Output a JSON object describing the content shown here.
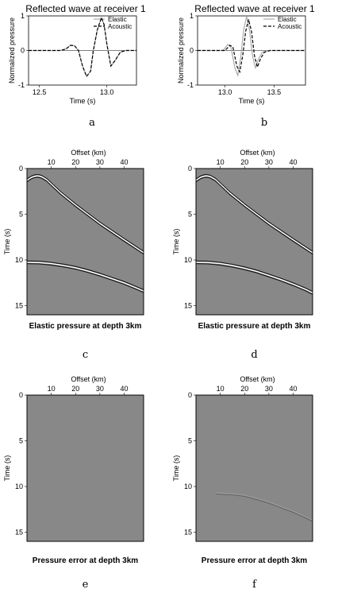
{
  "panels": [
    {
      "letter": "a"
    },
    {
      "letter": "b"
    },
    {
      "letter": "c"
    },
    {
      "letter": "d"
    },
    {
      "letter": "e"
    },
    {
      "letter": "f"
    }
  ],
  "chart_data": [
    {
      "panel": "a",
      "type": "line",
      "title": "Reflected wave at receiver 1",
      "xlabel": "Time (s)",
      "ylabel": "Normalized pressure",
      "xlim": [
        12.42,
        13.22
      ],
      "ylim": [
        -1,
        1
      ],
      "xticks": [
        "12.5",
        "13.0"
      ],
      "xtick_values": [
        12.5,
        13.0
      ],
      "yticks": [
        "-1",
        "0",
        "1"
      ],
      "ytick_values": [
        -1,
        0,
        1
      ],
      "legend_position": "top-right",
      "series": [
        {
          "name": "Elastic",
          "color": "#aaaaaa",
          "dash": "solid",
          "x": [
            12.42,
            12.66,
            12.7,
            12.73,
            12.76,
            12.79,
            12.82,
            12.85,
            12.88,
            12.9,
            12.93,
            12.96,
            12.98,
            13.0,
            13.03,
            13.06,
            13.1,
            13.14,
            13.22
          ],
          "y": [
            0,
            0,
            0.05,
            0.15,
            0.14,
            0,
            -0.45,
            -0.75,
            -0.6,
            0,
            0.6,
            0.95,
            0.75,
            0.2,
            -0.45,
            -0.3,
            -0.05,
            0,
            0
          ]
        },
        {
          "name": "Acoustic",
          "color": "#000000",
          "dash": "dashed",
          "x": [
            12.42,
            12.66,
            12.7,
            12.73,
            12.76,
            12.79,
            12.82,
            12.85,
            12.88,
            12.9,
            12.93,
            12.96,
            12.98,
            13.0,
            13.03,
            13.06,
            13.1,
            13.14,
            13.22
          ],
          "y": [
            0,
            0,
            0.05,
            0.15,
            0.14,
            0,
            -0.45,
            -0.75,
            -0.6,
            0,
            0.6,
            0.95,
            0.75,
            0.2,
            -0.45,
            -0.3,
            -0.05,
            0,
            0
          ]
        }
      ]
    },
    {
      "panel": "b",
      "type": "line",
      "title": "Reflected wave at receiver 1",
      "xlabel": "Time (s)",
      "ylabel": "Normalized pressure",
      "xlim": [
        12.72,
        13.82
      ],
      "ylim": [
        -1,
        1
      ],
      "xticks": [
        "13.0",
        "13.5"
      ],
      "xtick_values": [
        13.0,
        13.5
      ],
      "yticks": [
        "-1",
        "0",
        "1"
      ],
      "ytick_values": [
        -1,
        0,
        1
      ],
      "legend_position": "top-right",
      "series": [
        {
          "name": "Elastic",
          "color": "#aaaaaa",
          "dash": "solid",
          "x": [
            12.72,
            12.98,
            13.03,
            13.06,
            13.1,
            13.13,
            13.16,
            13.19,
            13.22,
            13.25,
            13.28,
            13.31,
            13.34,
            13.38,
            13.44,
            13.82
          ],
          "y": [
            0,
            0,
            0.18,
            0.1,
            -0.5,
            -0.72,
            -0.2,
            0.6,
            0.98,
            0.6,
            -0.15,
            -0.5,
            -0.25,
            -0.05,
            0,
            0
          ]
        },
        {
          "name": "Acoustic",
          "color": "#000000",
          "dash": "dashed",
          "x": [
            12.72,
            13.0,
            13.05,
            13.08,
            13.12,
            13.15,
            13.18,
            13.21,
            13.24,
            13.27,
            13.3,
            13.33,
            13.36,
            13.4,
            13.46,
            13.82
          ],
          "y": [
            0,
            0,
            0.15,
            0.1,
            -0.45,
            -0.62,
            -0.15,
            0.55,
            0.9,
            0.55,
            -0.15,
            -0.48,
            -0.25,
            -0.05,
            0,
            0
          ]
        }
      ]
    },
    {
      "panel": "c",
      "type": "heatmap",
      "title": "Elastic pressure at depth 3km",
      "xlabel": "Offset (km)",
      "ylabel": "Time (s)",
      "xlim": [
        0,
        48
      ],
      "ylim": [
        16,
        0
      ],
      "xticks": [
        "10",
        "20",
        "30",
        "40"
      ],
      "xtick_values": [
        10,
        20,
        30,
        40
      ],
      "yticks": [
        "0",
        "5",
        "10",
        "15"
      ],
      "ytick_values": [
        0,
        5,
        10,
        15
      ],
      "background": "#888888",
      "events": [
        {
          "x": [
            0,
            1,
            2,
            3,
            4,
            5,
            6,
            8,
            10,
            14,
            20,
            30,
            40,
            48
          ],
          "t": [
            1.3,
            1.1,
            0.95,
            0.85,
            0.8,
            0.82,
            0.9,
            1.2,
            1.7,
            2.7,
            4.0,
            6.0,
            7.8,
            9.2
          ]
        },
        {
          "x": [
            0,
            5,
            10,
            15,
            20,
            25,
            30,
            35,
            40,
            45,
            48
          ],
          "t": [
            10.25,
            10.28,
            10.4,
            10.6,
            10.85,
            11.2,
            11.6,
            12.05,
            12.5,
            13.05,
            13.4
          ]
        }
      ]
    },
    {
      "panel": "d",
      "type": "heatmap",
      "title": "Elastic pressure at depth 3km",
      "xlabel": "Offset (km)",
      "ylabel": "Time (s)",
      "xlim": [
        0,
        48
      ],
      "ylim": [
        16,
        0
      ],
      "xticks": [
        "10",
        "20",
        "30",
        "40"
      ],
      "xtick_values": [
        10,
        20,
        30,
        40
      ],
      "yticks": [
        "0",
        "5",
        "10",
        "15"
      ],
      "ytick_values": [
        0,
        5,
        10,
        15
      ],
      "background": "#888888",
      "events": [
        {
          "x": [
            0,
            1,
            2,
            3,
            4,
            5,
            6,
            8,
            10,
            14,
            20,
            30,
            40,
            48
          ],
          "t": [
            1.3,
            1.1,
            0.95,
            0.85,
            0.8,
            0.82,
            0.9,
            1.2,
            1.7,
            2.7,
            4.0,
            6.0,
            7.8,
            9.2
          ]
        },
        {
          "x": [
            0,
            5,
            10,
            15,
            20,
            25,
            30,
            35,
            40,
            45,
            48
          ],
          "t": [
            10.25,
            10.28,
            10.4,
            10.62,
            10.9,
            11.25,
            11.7,
            12.15,
            12.65,
            13.2,
            13.6
          ]
        }
      ]
    },
    {
      "panel": "e",
      "type": "heatmap",
      "title": "Pressure error at depth 3km",
      "xlabel": "Offset (km)",
      "ylabel": "Time (s)",
      "xlim": [
        0,
        48
      ],
      "ylim": [
        16,
        0
      ],
      "xticks": [
        "10",
        "20",
        "30",
        "40"
      ],
      "xtick_values": [
        10,
        20,
        30,
        40
      ],
      "yticks": [
        "0",
        "5",
        "10",
        "15"
      ],
      "ytick_values": [
        0,
        5,
        10,
        15
      ],
      "background": "#888888",
      "events": []
    },
    {
      "panel": "f",
      "type": "heatmap",
      "title": "Pressure error at depth 3km",
      "xlabel": "Offset (km)",
      "ylabel": "Time (s)",
      "xlim": [
        0,
        48
      ],
      "ylim": [
        16,
        0
      ],
      "xticks": [
        "10",
        "20",
        "30",
        "40"
      ],
      "xtick_values": [
        10,
        20,
        30,
        40
      ],
      "yticks": [
        "0",
        "5",
        "10",
        "15"
      ],
      "ytick_values": [
        0,
        5,
        10,
        15
      ],
      "background": "#888888",
      "events": [
        {
          "x": [
            8,
            15,
            20,
            25,
            30,
            35,
            40,
            45,
            48
          ],
          "t": [
            10.7,
            10.8,
            10.95,
            11.3,
            11.7,
            12.2,
            12.7,
            13.3,
            13.7
          ],
          "faint": true
        }
      ]
    }
  ]
}
